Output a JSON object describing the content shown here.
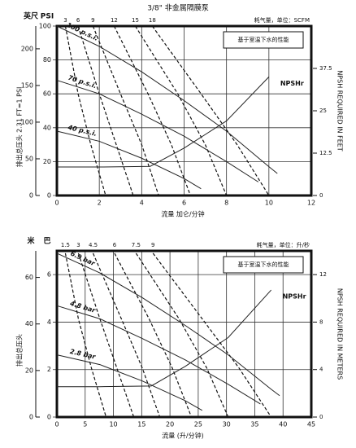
{
  "chart_data": [
    {
      "type": "line",
      "title": "3/8\" 非金属隔膜泵",
      "y_unit_label": "PSI",
      "y2_unit_label": "英尺",
      "ylabel": "排出总压头 2.31 FT=1 PSI",
      "xlabel": "流量 加仑/分钟",
      "top_label": "耗气量，单位：SCFM",
      "right_label": "NPSH REQUIRED IN FEET",
      "note": "基于室温下水的性能",
      "xlim": [
        0,
        12
      ],
      "xticks": [
        0,
        2,
        4,
        6,
        8,
        10,
        12
      ],
      "ylim": [
        0,
        100
      ],
      "yticks": [
        0,
        20,
        40,
        60,
        80,
        100
      ],
      "y2lim": [
        0,
        231
      ],
      "y2ticks": [
        0,
        50,
        100,
        150,
        200
      ],
      "y3lim": [
        0,
        50
      ],
      "y3ticks": [
        0,
        12.5,
        25,
        37.5
      ],
      "series": [
        {
          "name": "100 p.s.i.",
          "color": "#222",
          "x": [
            0,
            2,
            4,
            6,
            8,
            10,
            10.4
          ],
          "values": [
            100,
            88,
            73,
            56,
            38,
            17,
            13
          ]
        },
        {
          "name": "70 p.s.i.",
          "color": "#222",
          "x": [
            0,
            2,
            4,
            6,
            8,
            9.5
          ],
          "values": [
            68,
            60,
            48,
            35,
            20,
            8
          ]
        },
        {
          "name": "40 p.s.i.",
          "color": "#222",
          "x": [
            0,
            2,
            4,
            6,
            6.8
          ],
          "values": [
            38,
            32,
            22,
            10,
            4
          ]
        },
        {
          "name": "NPSHr",
          "color": "#222",
          "axis": "y3",
          "x": [
            0,
            2,
            4.4,
            6,
            8,
            10
          ],
          "values": [
            8.4,
            8.4,
            8.6,
            14,
            22,
            35
          ]
        }
      ],
      "air_series": [
        {
          "name": "3",
          "x": [
            0.4,
            1,
            1.6,
            2.3
          ],
          "values": [
            100,
            60,
            30,
            0
          ]
        },
        {
          "name": "6",
          "x": [
            1,
            2,
            2.8,
            3.6
          ],
          "values": [
            100,
            60,
            30,
            0
          ]
        },
        {
          "name": "9",
          "x": [
            1.7,
            3,
            4,
            4.8
          ],
          "values": [
            100,
            60,
            30,
            0
          ]
        },
        {
          "name": "12",
          "x": [
            2.7,
            4.3,
            5.4,
            6.3
          ],
          "values": [
            100,
            60,
            30,
            0
          ]
        },
        {
          "name": "15",
          "x": [
            3.7,
            5.7,
            7,
            8
          ],
          "values": [
            100,
            60,
            30,
            0
          ]
        },
        {
          "name": "18",
          "x": [
            4.5,
            6.8,
            8.5,
            10
          ],
          "values": [
            100,
            60,
            30,
            0
          ]
        }
      ]
    },
    {
      "type": "line",
      "y_unit_label": "巴",
      "y2_unit_label": "米",
      "ylabel": "排出总压头",
      "xlabel": "流量 (升/分钟)",
      "top_label": "耗气量，单位：升/秒",
      "right_label": "NPSH REQUIRED IN METERS",
      "note": "基于室温下水的性能",
      "xlim": [
        0,
        45
      ],
      "xticks": [
        0,
        5,
        10,
        15,
        20,
        25,
        30,
        35,
        40,
        45
      ],
      "ylim": [
        0,
        7
      ],
      "yticks": [
        0,
        2,
        4,
        6
      ],
      "y2lim": [
        0,
        71.4
      ],
      "y2ticks": [
        0,
        20,
        40,
        60
      ],
      "y3lim": [
        0,
        14
      ],
      "y3ticks": [
        0,
        4,
        8,
        12
      ],
      "series": [
        {
          "name": "6.9 bar",
          "color": "#222",
          "x": [
            0,
            7.6,
            15.1,
            22.7,
            30.3,
            37.9,
            39.4
          ],
          "values": [
            6.9,
            6.07,
            5.03,
            3.86,
            2.62,
            1.17,
            0.9
          ]
        },
        {
          "name": "4.8 bar",
          "color": "#222",
          "x": [
            0,
            7.6,
            15.1,
            22.7,
            30.3,
            36
          ],
          "values": [
            4.69,
            4.14,
            3.31,
            2.41,
            1.38,
            0.55
          ]
        },
        {
          "name": "2.8 bar",
          "color": "#222",
          "x": [
            0,
            7.6,
            15.1,
            22.7,
            25.7
          ],
          "values": [
            2.62,
            2.21,
            1.52,
            0.69,
            0.28
          ]
        },
        {
          "name": "NPSHr",
          "color": "#222",
          "axis": "y3",
          "x": [
            0,
            7.6,
            16.7,
            22.7,
            30.3,
            37.9
          ],
          "values": [
            2.56,
            2.56,
            2.62,
            4.27,
            6.7,
            10.7
          ]
        }
      ],
      "air_series": [
        {
          "name": "1.5",
          "x": [
            1.5,
            3.8,
            6.1,
            8.7
          ],
          "values": [
            6.9,
            4.14,
            2.07,
            0
          ]
        },
        {
          "name": "3",
          "x": [
            3.8,
            7.6,
            10.6,
            13.6
          ],
          "values": [
            6.9,
            4.14,
            2.07,
            0
          ]
        },
        {
          "name": "4.5",
          "x": [
            6.4,
            11.4,
            15.1,
            18.2
          ],
          "values": [
            6.9,
            4.14,
            2.07,
            0
          ]
        },
        {
          "name": "6",
          "x": [
            10.2,
            16.3,
            20.4,
            23.8
          ],
          "values": [
            6.9,
            4.14,
            2.07,
            0
          ]
        },
        {
          "name": "7.5",
          "x": [
            14,
            21.6,
            26.5,
            30.3
          ],
          "values": [
            6.9,
            4.14,
            2.07,
            0
          ]
        },
        {
          "name": "9",
          "x": [
            17,
            25.7,
            32.2,
            37.9
          ],
          "values": [
            6.9,
            4.14,
            2.07,
            0
          ]
        }
      ]
    }
  ]
}
